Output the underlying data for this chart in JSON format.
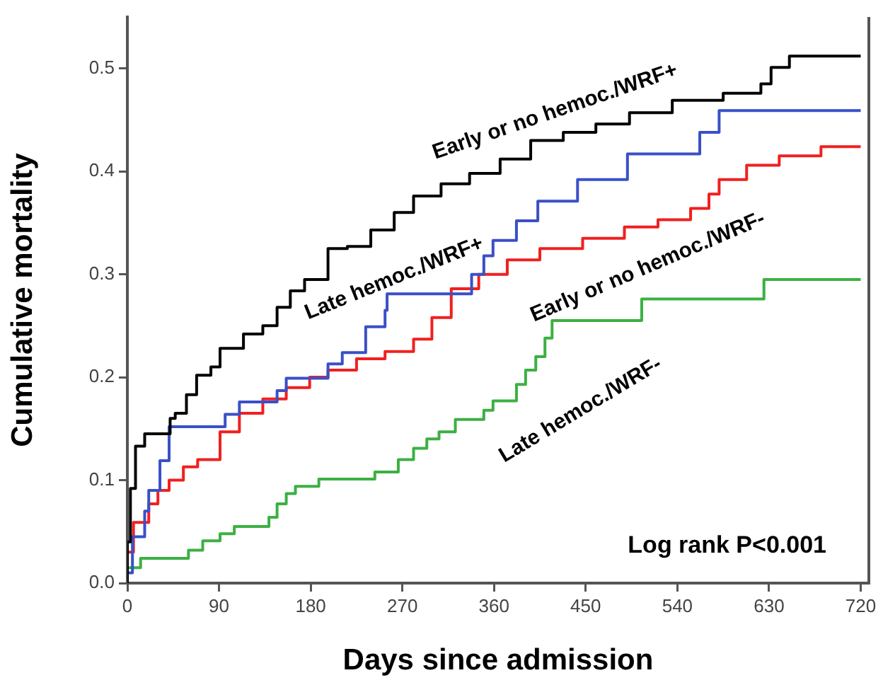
{
  "chart_data": {
    "type": "step",
    "xlabel": "Days since admission",
    "ylabel": "Cumulative mortality",
    "xlim": [
      0,
      728
    ],
    "ylim": [
      0,
      0.55
    ],
    "xticks": [
      0,
      90,
      180,
      270,
      360,
      450,
      540,
      630,
      720
    ],
    "yticks": [
      {
        "value": 0,
        "label": "0.0"
      },
      0.1,
      0.2,
      0.3,
      0.4,
      0.5
    ],
    "grid": false,
    "marker": "none",
    "series": [
      {
        "name": "Early or no hemoc./WRF+",
        "color": "#000000",
        "x": [
          0,
          3,
          8,
          17,
          26,
          42,
          47,
          58,
          68,
          82,
          91,
          114,
          133,
          147,
          160,
          174,
          197,
          216,
          239,
          262,
          281,
          308,
          336,
          366,
          396,
          428,
          460,
          493,
          535,
          585,
          622,
          632,
          650,
          701,
          720
        ],
        "values": [
          0,
          0.04,
          0.092,
          0.133,
          0.145,
          0.145,
          0.16,
          0.165,
          0.183,
          0.202,
          0.21,
          0.228,
          0.242,
          0.25,
          0.268,
          0.284,
          0.295,
          0.325,
          0.327,
          0.343,
          0.36,
          0.376,
          0.388,
          0.398,
          0.412,
          0.43,
          0.438,
          0.446,
          0.457,
          0.469,
          0.476,
          0.485,
          0.501,
          0.512,
          0.512
        ]
      },
      {
        "name": "Late hemoc./WRF+",
        "color": "#3a50c8",
        "x": [
          0,
          5,
          17,
          21,
          32,
          41,
          96,
          110,
          147,
          156,
          197,
          211,
          234,
          253,
          255,
          338,
          350,
          359,
          382,
          403,
          442,
          491,
          562,
          581,
          597,
          720
        ],
        "values": [
          0,
          0.01,
          0.045,
          0.07,
          0.09,
          0.119,
          0.152,
          0.164,
          0.176,
          0.187,
          0.199,
          0.213,
          0.224,
          0.249,
          0.265,
          0.281,
          0.3,
          0.318,
          0.333,
          0.352,
          0.371,
          0.392,
          0.417,
          0.438,
          0.459,
          0.459
        ]
      },
      {
        "name": "Early or no hemoc./WRF-",
        "color": "#f02020",
        "x": [
          0,
          6,
          21,
          30,
          41,
          55,
          69,
          91,
          110,
          133,
          156,
          179,
          197,
          225,
          253,
          281,
          299,
          318,
          345,
          373,
          405,
          447,
          488,
          521,
          553,
          571,
          581,
          608,
          640,
          681,
          720
        ],
        "values": [
          0,
          0.03,
          0.059,
          0.077,
          0.09,
          0.1,
          0.113,
          0.12,
          0.147,
          0.165,
          0.179,
          0.19,
          0.2,
          0.207,
          0.218,
          0.225,
          0.237,
          0.258,
          0.286,
          0.3,
          0.314,
          0.325,
          0.335,
          0.346,
          0.353,
          0.364,
          0.378,
          0.392,
          0.406,
          0.415,
          0.424
        ]
      },
      {
        "name": "Late hemoc./WRF-",
        "color": "#3cb043",
        "x": [
          0,
          13,
          60,
          74,
          91,
          105,
          139,
          147,
          156,
          165,
          188,
          243,
          266,
          281,
          294,
          306,
          322,
          350,
          359,
          382,
          391,
          401,
          410,
          417,
          505,
          625,
          668,
          720
        ],
        "values": [
          0,
          0.015,
          0.024,
          0.032,
          0.041,
          0.048,
          0.055,
          0.064,
          0.077,
          0.087,
          0.094,
          0.101,
          0.108,
          0.12,
          0.131,
          0.14,
          0.147,
          0.159,
          0.168,
          0.177,
          0.193,
          0.207,
          0.22,
          0.238,
          0.255,
          0.276,
          0.295,
          0.295
        ]
      }
    ],
    "annotations": [
      "Log rank P<0.001"
    ]
  }
}
